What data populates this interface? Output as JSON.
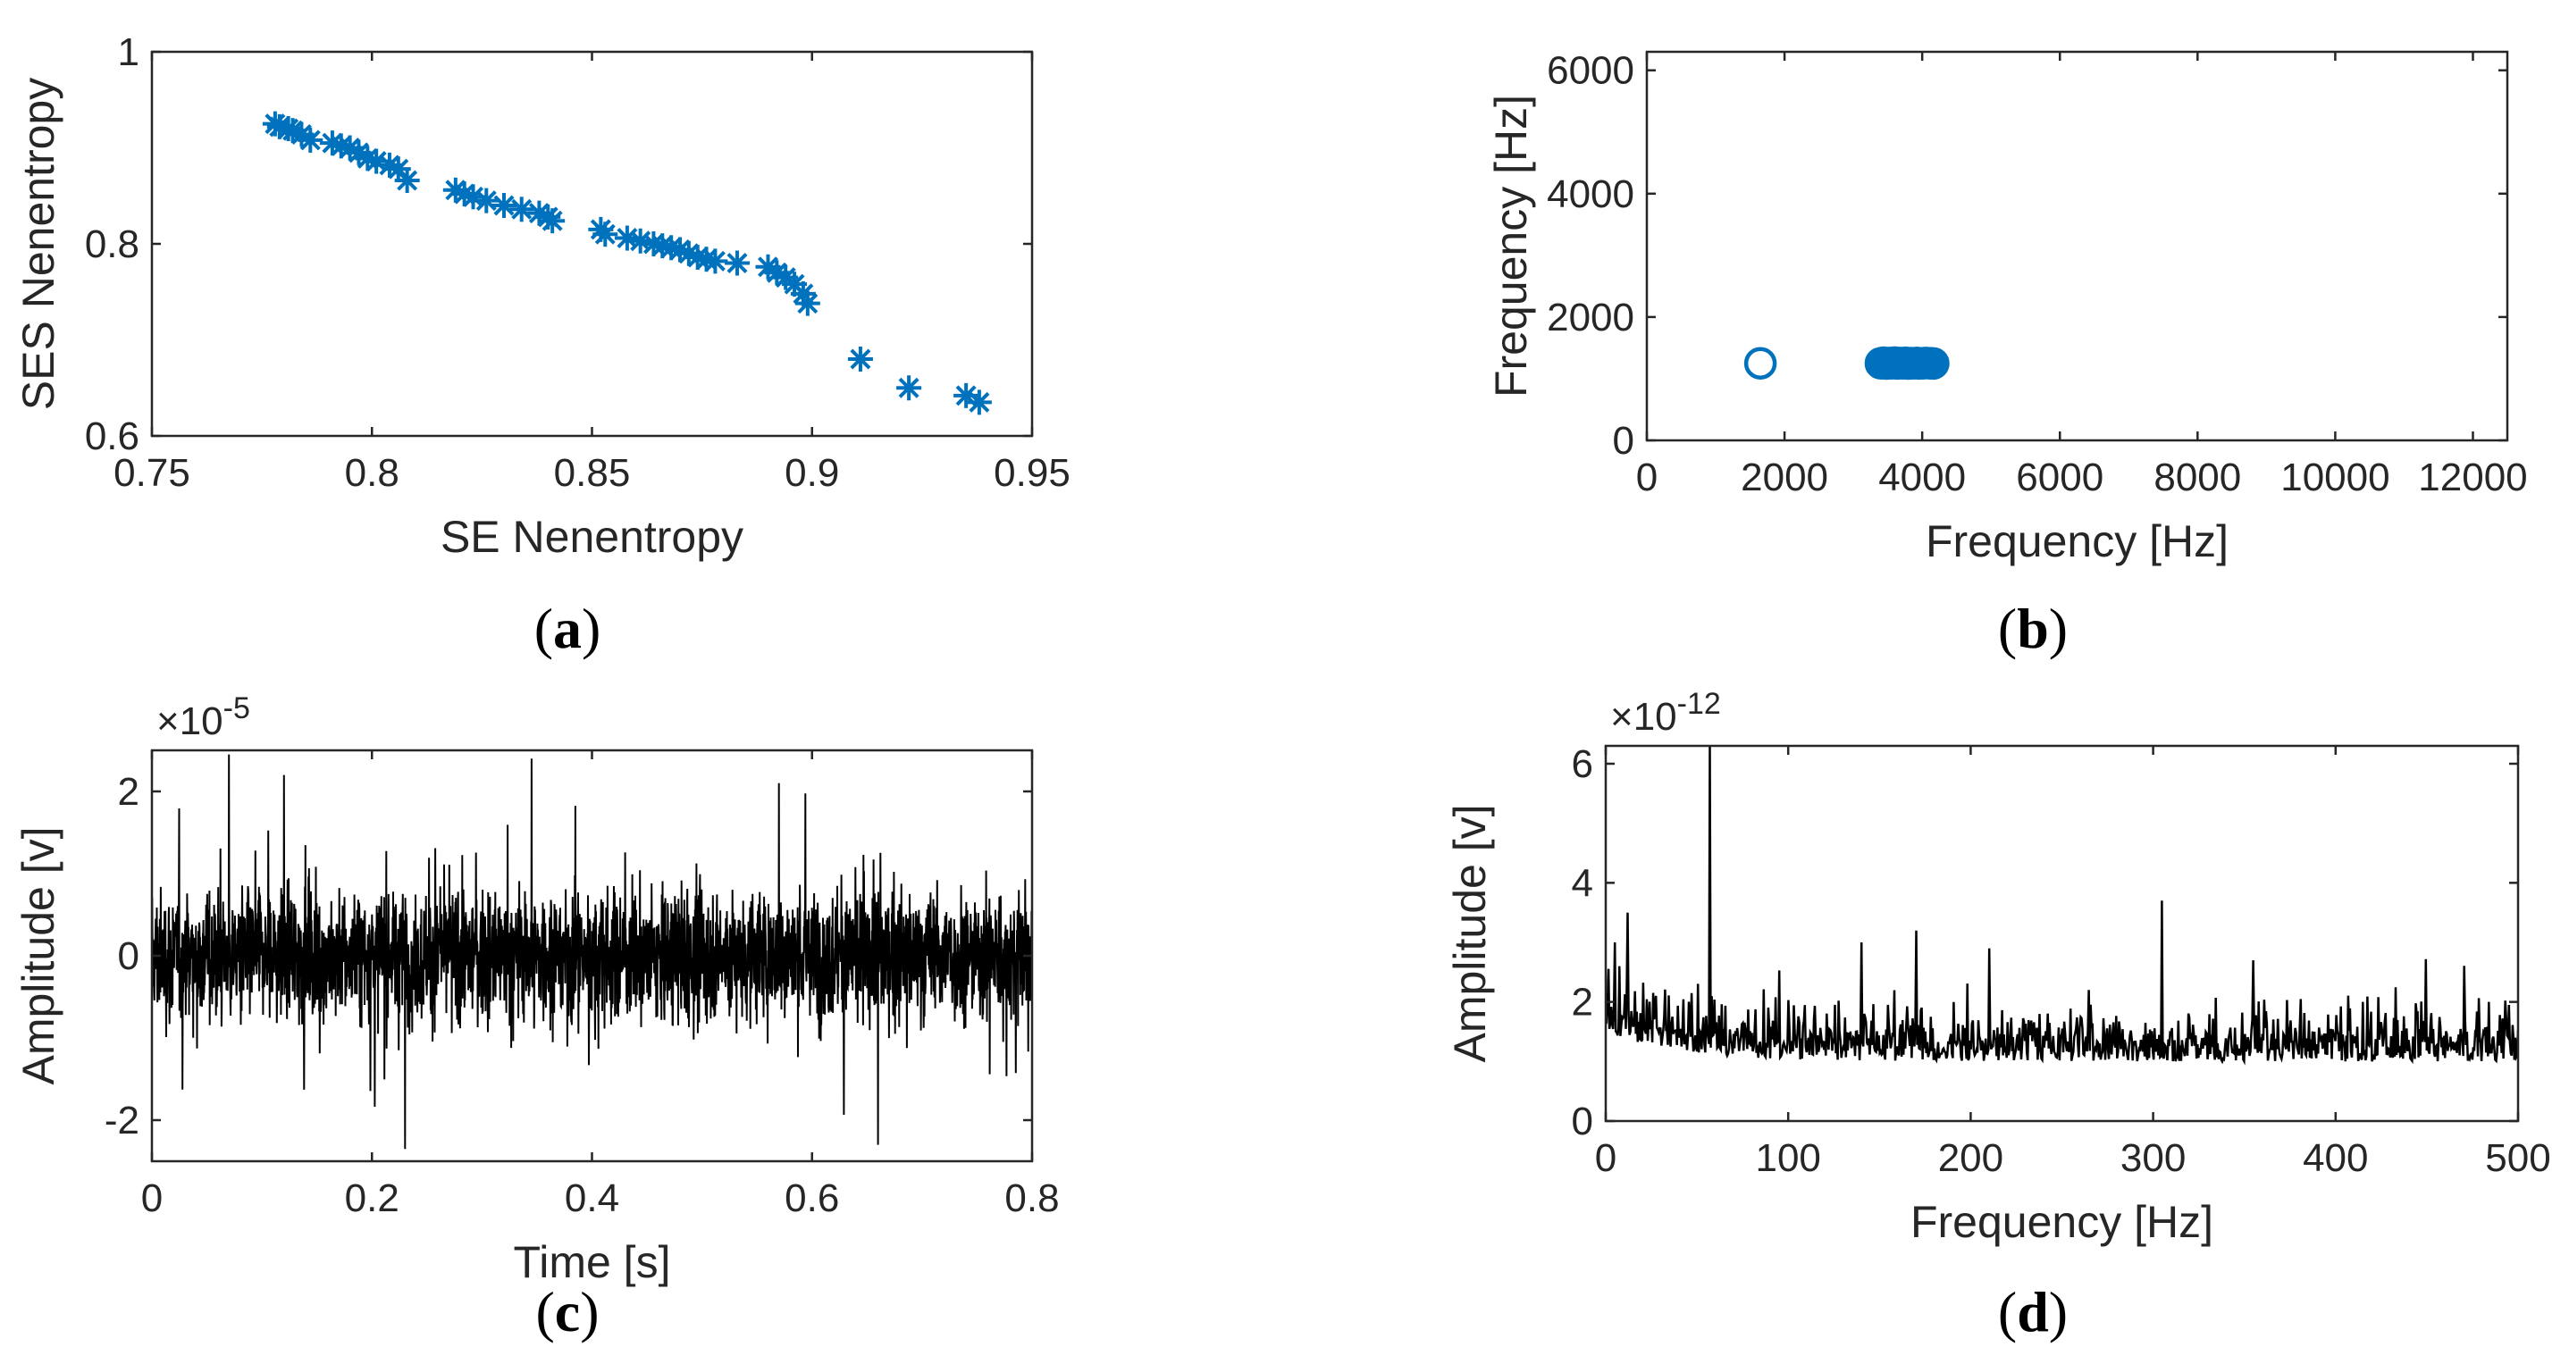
{
  "chart_data": [
    {
      "type": "scatter",
      "panel_label": {
        "open": "(",
        "letter": "a",
        "close": ")"
      },
      "xlabel": "SE Nenentropy",
      "ylabel": "SES Nenentropy",
      "xlim": [
        0.75,
        0.95
      ],
      "ylim": [
        0.6,
        1.0
      ],
      "xticks": [
        0.75,
        0.8,
        0.85,
        0.9,
        0.95
      ],
      "xtick_labels": [
        "0.75",
        "0.8",
        "0.85",
        "0.9",
        "0.95"
      ],
      "yticks": [
        0.6,
        0.8,
        1.0
      ],
      "ytick_labels": [
        "0.6",
        "0.8",
        "1"
      ],
      "marker": "asterisk",
      "color": "#0072BD",
      "x": [
        0.778,
        0.779,
        0.781,
        0.782,
        0.784,
        0.786,
        0.791,
        0.793,
        0.795,
        0.797,
        0.799,
        0.801,
        0.804,
        0.806,
        0.808,
        0.819,
        0.821,
        0.823,
        0.826,
        0.83,
        0.834,
        0.838,
        0.84,
        0.841,
        0.852,
        0.853,
        0.858,
        0.861,
        0.864,
        0.866,
        0.868,
        0.87,
        0.872,
        0.874,
        0.876,
        0.878,
        0.883,
        0.89,
        0.892,
        0.894,
        0.896,
        0.898,
        0.899,
        0.911,
        0.922,
        0.935,
        0.938
      ],
      "y": [
        0.925,
        0.922,
        0.92,
        0.918,
        0.914,
        0.908,
        0.905,
        0.902,
        0.9,
        0.895,
        0.889,
        0.886,
        0.882,
        0.878,
        0.866,
        0.856,
        0.852,
        0.849,
        0.845,
        0.84,
        0.836,
        0.832,
        0.828,
        0.824,
        0.815,
        0.81,
        0.806,
        0.803,
        0.8,
        0.798,
        0.796,
        0.794,
        0.79,
        0.786,
        0.784,
        0.782,
        0.78,
        0.776,
        0.77,
        0.765,
        0.758,
        0.748,
        0.738,
        0.68,
        0.65,
        0.642,
        0.635
      ]
    },
    {
      "type": "scatter",
      "panel_label": {
        "open": "(",
        "letter": "b",
        "close": ")"
      },
      "xlabel": "Frequency [Hz]",
      "ylabel": "Frequency [Hz]",
      "xlim": [
        0,
        12500
      ],
      "ylim": [
        0,
        6300
      ],
      "xticks": [
        0,
        2000,
        4000,
        6000,
        8000,
        10000,
        12000
      ],
      "xtick_labels": [
        "0",
        "2000",
        "4000",
        "6000",
        "8000",
        "10000",
        "12000"
      ],
      "yticks": [
        0,
        2000,
        4000,
        6000
      ],
      "ytick_labels": [
        "0",
        "2000",
        "4000",
        "6000"
      ],
      "marker": "circle",
      "color": "#0072BD",
      "x": [
        1650,
        3400,
        3440,
        3480,
        3520,
        3560,
        3600,
        3640,
        3680,
        3720,
        3760,
        3800,
        3840,
        3880,
        3920,
        3960,
        4000,
        4040,
        4080,
        4120,
        4160
      ],
      "y": [
        1250,
        1250,
        1260,
        1245,
        1255,
        1250,
        1262,
        1248,
        1255,
        1250,
        1258,
        1245,
        1252,
        1250,
        1256,
        1248,
        1250,
        1255,
        1252,
        1250,
        1248
      ]
    },
    {
      "type": "line",
      "panel_label": {
        "open": "(",
        "letter": "c",
        "close": ")"
      },
      "xlabel": "Time [s]",
      "ylabel": "Amplitude [v]",
      "exponent_label": {
        "base": "×10",
        "power": "-5"
      },
      "xlim": [
        0,
        0.8
      ],
      "ylim": [
        -2.5,
        2.5
      ],
      "xticks": [
        0,
        0.2,
        0.4,
        0.6,
        0.8
      ],
      "xtick_labels": [
        "0",
        "0.2",
        "0.4",
        "0.6",
        "0.8"
      ],
      "yticks": [
        -2,
        0,
        2
      ],
      "ytick_labels": [
        "-2",
        "0",
        "2"
      ],
      "color": "#000000",
      "spikes": [
        {
          "x": 0.07,
          "y": 2.45
        },
        {
          "x": 0.345,
          "y": 2.4
        },
        {
          "x": 0.23,
          "y": -2.35
        },
        {
          "x": 0.66,
          "y": -2.3
        },
        {
          "x": 0.57,
          "y": 2.1
        },
        {
          "x": 0.12,
          "y": 2.2
        }
      ]
    },
    {
      "type": "line",
      "panel_label": {
        "open": "(",
        "letter": "d",
        "close": ")"
      },
      "xlabel": "Frequency [Hz]",
      "ylabel": "Amplitude [v]",
      "exponent_label": {
        "base": "×10",
        "power": "-12"
      },
      "xlim": [
        0,
        500
      ],
      "ylim": [
        0,
        6.3
      ],
      "xticks": [
        0,
        100,
        200,
        300,
        400,
        500
      ],
      "xtick_labels": [
        "0",
        "100",
        "200",
        "300",
        "400",
        "500"
      ],
      "yticks": [
        0,
        2,
        4,
        6
      ],
      "ytick_labels": [
        "0",
        "2",
        "4",
        "6"
      ],
      "color": "#000000",
      "peaks": [
        {
          "x": 57,
          "y": 6.3
        },
        {
          "x": 305,
          "y": 3.7
        },
        {
          "x": 12,
          "y": 3.5
        },
        {
          "x": 5,
          "y": 3.0
        },
        {
          "x": 170,
          "y": 3.2
        },
        {
          "x": 140,
          "y": 3.0
        },
        {
          "x": 355,
          "y": 2.7
        },
        {
          "x": 210,
          "y": 2.9
        },
        {
          "x": 265,
          "y": 2.2
        },
        {
          "x": 415,
          "y": 2.0
        }
      ]
    }
  ]
}
